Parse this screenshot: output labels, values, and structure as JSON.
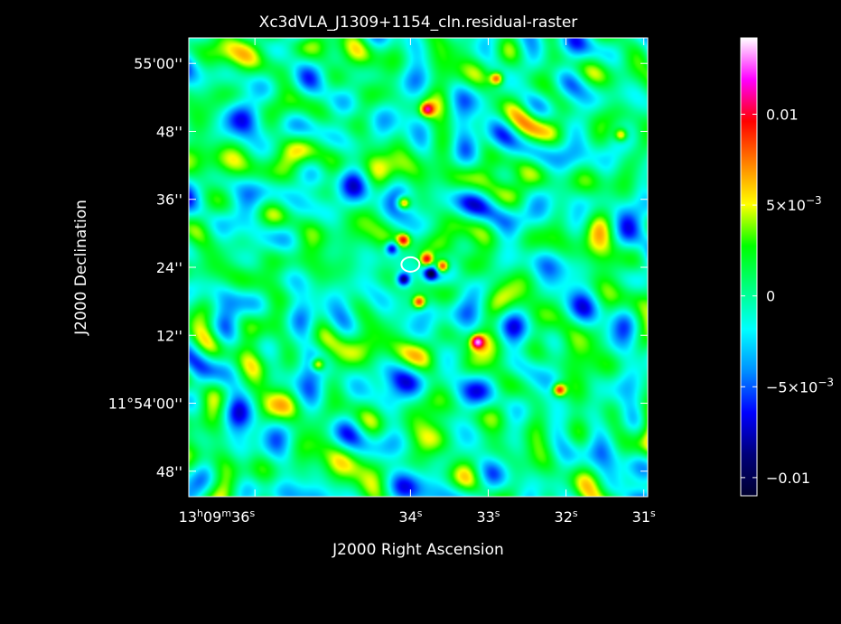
{
  "chart_data": {
    "type": "heatmap",
    "title": "Xc3dVLA_J1309+1154_cln.residual-raster",
    "xlabel": "J2000 Right Ascension",
    "ylabel": "J2000 Declination",
    "x_ticks": [
      {
        "ra_sec": 36,
        "h": "13",
        "m": "09",
        "s": "36",
        "full": true
      },
      {
        "ra_sec": 34,
        "s": "34"
      },
      {
        "ra_sec": 33,
        "s": "33"
      },
      {
        "ra_sec": 32,
        "s": "32"
      },
      {
        "ra_sec": 31,
        "s": "31"
      }
    ],
    "y_ticks": [
      {
        "dec_arcsec": 60,
        "label": "55'00''"
      },
      {
        "dec_arcsec": 48,
        "label": "48''"
      },
      {
        "dec_arcsec": 36,
        "label": "36''"
      },
      {
        "dec_arcsec": 24,
        "label": "24''"
      },
      {
        "dec_arcsec": 12,
        "label": "12''"
      },
      {
        "dec_arcsec": 0,
        "label": "11°54'00''"
      },
      {
        "dec_arcsec": -12,
        "label": "48''"
      }
    ],
    "xlim_ra_sec": [
      36.85,
      30.95
    ],
    "ylim_dec_arcsec": [
      -16.5,
      64.5
    ],
    "colorbar": {
      "range": [
        -0.011,
        0.0142
      ],
      "ticks": [
        {
          "value": 0.01,
          "label": "0.01"
        },
        {
          "value": 0.005,
          "label": "5×10",
          "exp": "−3"
        },
        {
          "value": 0,
          "label": "0"
        },
        {
          "value": -0.005,
          "label": "−5×10",
          "exp": "−3"
        },
        {
          "value": -0.01,
          "label": "−0.01"
        }
      ],
      "colormap": [
        "#000030",
        "#00007a",
        "#0000ff",
        "#0090ff",
        "#00ffff",
        "#00ff80",
        "#00ff00",
        "#ffff00",
        "#ff8000",
        "#ff0000",
        "#ff00ff",
        "#ffffff"
      ]
    },
    "grid": false,
    "source_ellipse": {
      "ra_sec": 34.0,
      "dec_arcsec": 24.5
    },
    "bright_peaks": [
      {
        "ra_sec": 33.6,
        "dec_arcsec": 24.3,
        "value": 0.014
      },
      {
        "ra_sec": 33.8,
        "dec_arcsec": 25.5,
        "value": 0.012
      },
      {
        "ra_sec": 34.1,
        "dec_arcsec": 35.5,
        "value": 0.012
      },
      {
        "ra_sec": 34.1,
        "dec_arcsec": 29.0,
        "value": 0.011
      },
      {
        "ra_sec": 33.9,
        "dec_arcsec": 18.0,
        "value": 0.011
      },
      {
        "ra_sec": 33.15,
        "dec_arcsec": 11.0,
        "value": 0.012
      },
      {
        "ra_sec": 33.8,
        "dec_arcsec": 52.0,
        "value": 0.01
      },
      {
        "ra_sec": 32.1,
        "dec_arcsec": 2.5,
        "value": 0.012
      },
      {
        "ra_sec": 32.9,
        "dec_arcsec": 57.5,
        "value": 0.01
      },
      {
        "ra_sec": 35.2,
        "dec_arcsec": 7.0,
        "value": 0.01
      },
      {
        "ra_sec": 31.3,
        "dec_arcsec": 47.5,
        "value": 0.009
      }
    ],
    "dark_troughs": [
      {
        "ra_sec": 34.1,
        "dec_arcsec": 22.0,
        "value": -0.011
      },
      {
        "ra_sec": 34.25,
        "dec_arcsec": 27.5,
        "value": -0.01
      },
      {
        "ra_sec": 33.75,
        "dec_arcsec": 23.0,
        "value": -0.01
      }
    ]
  }
}
